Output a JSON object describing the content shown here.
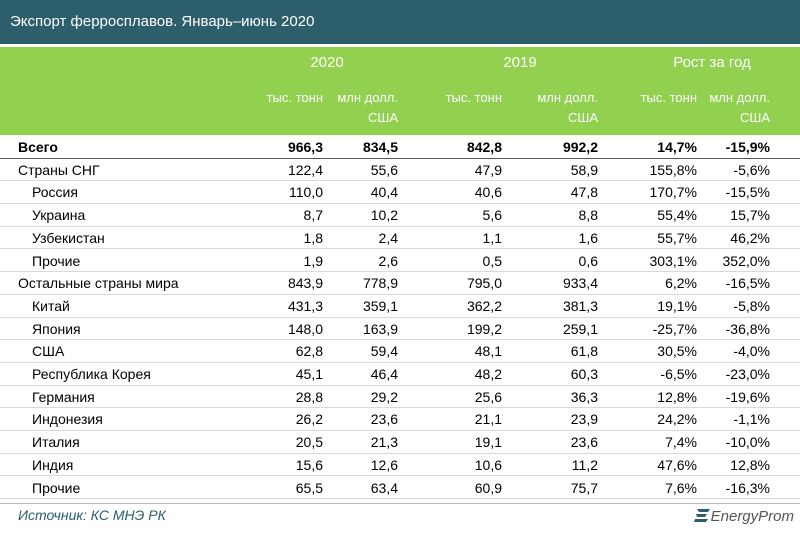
{
  "header": {
    "title": "Экспорт ферросплавов. Январь–июнь 2020"
  },
  "table": {
    "groups": [
      "2020",
      "2019",
      "Рост за год"
    ],
    "subheaders": [
      "тыс. тонн",
      "млн долл. США",
      "тыс. тонн",
      "млн долл. США",
      "тыс. тонн",
      "млн долл. США"
    ],
    "rows": [
      {
        "label": "Всего",
        "level": 0,
        "values": [
          "966,3",
          "834,5",
          "842,8",
          "992,2",
          "14,7%",
          "-15,9%"
        ]
      },
      {
        "label": "Страны СНГ",
        "level": 0,
        "values": [
          "122,4",
          "55,6",
          "47,9",
          "58,9",
          "155,8%",
          "-5,6%"
        ]
      },
      {
        "label": "Россия",
        "level": 1,
        "values": [
          "110,0",
          "40,4",
          "40,6",
          "47,8",
          "170,7%",
          "-15,5%"
        ]
      },
      {
        "label": "Украина",
        "level": 1,
        "values": [
          "8,7",
          "10,2",
          "5,6",
          "8,8",
          "55,4%",
          "15,7%"
        ]
      },
      {
        "label": "Узбекистан",
        "level": 1,
        "values": [
          "1,8",
          "2,4",
          "1,1",
          "1,6",
          "55,7%",
          "46,2%"
        ]
      },
      {
        "label": "Прочие",
        "level": 1,
        "values": [
          "1,9",
          "2,6",
          "0,5",
          "0,6",
          "303,1%",
          "352,0%"
        ]
      },
      {
        "label": "Остальные страны мира",
        "level": 0,
        "values": [
          "843,9",
          "778,9",
          "795,0",
          "933,4",
          "6,2%",
          "-16,5%"
        ]
      },
      {
        "label": "Китай",
        "level": 1,
        "values": [
          "431,3",
          "359,1",
          "362,2",
          "381,3",
          "19,1%",
          "-5,8%"
        ]
      },
      {
        "label": "Япония",
        "level": 1,
        "values": [
          "148,0",
          "163,9",
          "199,2",
          "259,1",
          "-25,7%",
          "-36,8%"
        ]
      },
      {
        "label": "США",
        "level": 1,
        "values": [
          "62,8",
          "59,4",
          "48,1",
          "61,8",
          "30,5%",
          "-4,0%"
        ]
      },
      {
        "label": "Республика Корея",
        "level": 1,
        "values": [
          "45,1",
          "46,4",
          "48,2",
          "60,3",
          "-6,5%",
          "-23,0%"
        ]
      },
      {
        "label": "Германия",
        "level": 1,
        "values": [
          "28,8",
          "29,2",
          "25,6",
          "36,3",
          "12,8%",
          "-19,6%"
        ]
      },
      {
        "label": "Индонезия",
        "level": 1,
        "values": [
          "26,2",
          "23,6",
          "21,1",
          "23,9",
          "24,2%",
          "-1,1%"
        ]
      },
      {
        "label": "Италия",
        "level": 1,
        "values": [
          "20,5",
          "21,3",
          "19,1",
          "23,6",
          "7,4%",
          "-10,0%"
        ]
      },
      {
        "label": "Индия",
        "level": 1,
        "values": [
          "15,6",
          "12,6",
          "10,6",
          "11,2",
          "47,6%",
          "12,8%"
        ]
      },
      {
        "label": "Прочие",
        "level": 1,
        "values": [
          "65,5",
          "63,4",
          "60,9",
          "75,7",
          "7,6%",
          "-16,3%"
        ]
      }
    ]
  },
  "footer": {
    "source": "Источник: КС МНЭ РК",
    "logo": "EnergyProm"
  }
}
